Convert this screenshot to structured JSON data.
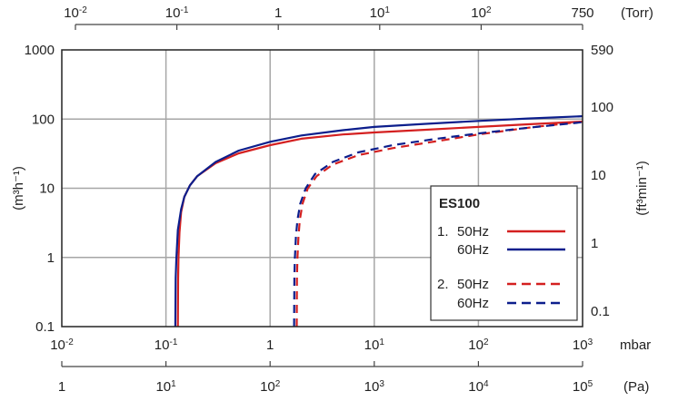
{
  "chart_data": {
    "type": "line",
    "x_unit": "mbar",
    "x_scale": "log",
    "xlim": [
      0.01,
      1000
    ],
    "x_ticks": [
      {
        "m": "10",
        "e": "-2"
      },
      {
        "m": "10",
        "e": "-1"
      },
      {
        "m": "1",
        "e": ""
      },
      {
        "m": "10",
        "e": "1"
      },
      {
        "m": "10",
        "e": "2"
      },
      {
        "m": "10",
        "e": "3"
      }
    ],
    "y_unit": "(m³h⁻¹)",
    "y_scale": "log",
    "ylim": [
      0.1,
      1000
    ],
    "y_ticks": [
      "0.1",
      "1",
      "10",
      "100",
      "1000"
    ],
    "top_axis": {
      "unit": "(Torr)",
      "ticks": [
        {
          "m": "10",
          "e": "-2"
        },
        {
          "m": "10",
          "e": "-1"
        },
        {
          "m": "1",
          "e": ""
        },
        {
          "m": "10",
          "e": "1"
        },
        {
          "m": "10",
          "e": "2"
        },
        {
          "m": "750",
          "e": ""
        }
      ]
    },
    "right_axis": {
      "unit": "(ft³min⁻¹)",
      "ticks": [
        "0.1",
        "1",
        "10",
        "100",
        "590"
      ]
    },
    "bottom_axis_2": {
      "unit": "(Pa)",
      "ticks": [
        {
          "m": "1",
          "e": ""
        },
        {
          "m": "10",
          "e": "1"
        },
        {
          "m": "10",
          "e": "2"
        },
        {
          "m": "10",
          "e": "3"
        },
        {
          "m": "10",
          "e": "4"
        },
        {
          "m": "10",
          "e": "5"
        }
      ]
    },
    "grid": true,
    "legend": {
      "title": "ES100",
      "placement": "bottom-right",
      "groups": [
        {
          "label": "1.",
          "entries": [
            "50Hz",
            "60Hz"
          ]
        },
        {
          "label": "2.",
          "entries": [
            "50Hz",
            "60Hz"
          ]
        }
      ]
    },
    "series": [
      {
        "stage": "1.",
        "freq": "50Hz",
        "color": "#d42020",
        "dash": "solid",
        "x": [
          0.13,
          0.131,
          0.132,
          0.135,
          0.14,
          0.15,
          0.17,
          0.2,
          0.3,
          0.5,
          1,
          2,
          5,
          10,
          30,
          100,
          300,
          1000
        ],
        "y": [
          0.1,
          0.5,
          1,
          2.3,
          4.5,
          7.5,
          11,
          15,
          23,
          32,
          42,
          52,
          60,
          64,
          70,
          77,
          84,
          92
        ]
      },
      {
        "stage": "1.",
        "freq": "60Hz",
        "color": "#0c1e8c",
        "dash": "solid",
        "x": [
          0.123,
          0.124,
          0.126,
          0.13,
          0.14,
          0.15,
          0.17,
          0.2,
          0.3,
          0.5,
          1,
          2,
          5,
          10,
          30,
          100,
          300,
          1000
        ],
        "y": [
          0.1,
          0.5,
          1,
          2.5,
          5,
          7.5,
          11,
          15,
          24,
          35,
          47,
          58,
          69,
          77,
          85,
          94,
          102,
          110
        ]
      },
      {
        "stage": "2.",
        "freq": "50Hz",
        "color": "#d42020",
        "dash": "dashed",
        "x": [
          1.8,
          1.81,
          1.83,
          1.87,
          1.93,
          2.05,
          2.3,
          2.8,
          4,
          7,
          15,
          40,
          100,
          300,
          1000
        ],
        "y": [
          0.1,
          0.5,
          1,
          2,
          3.5,
          6,
          10,
          15,
          22,
          30,
          38,
          48,
          60,
          75,
          92
        ]
      },
      {
        "stage": "2.",
        "freq": "60Hz",
        "color": "#0c1e8c",
        "dash": "dashed",
        "x": [
          1.7,
          1.71,
          1.73,
          1.77,
          1.83,
          1.95,
          2.2,
          2.7,
          4,
          7,
          15,
          40,
          100,
          300,
          1000
        ],
        "y": [
          0.1,
          0.5,
          1,
          2,
          3.5,
          6,
          10,
          16,
          24,
          33,
          42,
          52,
          62,
          75,
          90
        ]
      }
    ]
  }
}
